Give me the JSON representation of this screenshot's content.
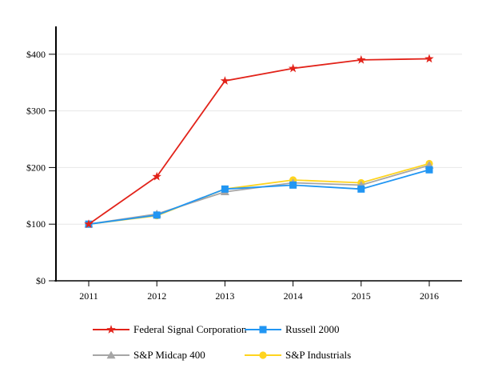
{
  "chart_data": {
    "type": "line",
    "title": "",
    "xlabel": "",
    "ylabel": "",
    "x": [
      "2011",
      "2012",
      "2013",
      "2014",
      "2015",
      "2016"
    ],
    "series": [
      {
        "name": "Federal Signal Corporation",
        "marker": "star",
        "color": "#e2231a",
        "values": [
          100,
          184,
          353,
          375,
          390,
          392
        ]
      },
      {
        "name": "Russell 2000",
        "marker": "square",
        "color": "#2196f3",
        "values": [
          100,
          116,
          162,
          169,
          162,
          196
        ]
      },
      {
        "name": "S&P Midcap 400",
        "marker": "triangle",
        "color": "#a6a6a6",
        "values": [
          100,
          118,
          157,
          173,
          169,
          204
        ]
      },
      {
        "name": "S&P Industrials",
        "marker": "circle",
        "color": "#ffd41f",
        "values": [
          100,
          115,
          162,
          178,
          173,
          207
        ]
      }
    ],
    "y_ticks": [
      {
        "value": 0,
        "label": "$0"
      },
      {
        "value": 100,
        "label": "$100"
      },
      {
        "value": 200,
        "label": "$200"
      },
      {
        "value": 300,
        "label": "$300"
      },
      {
        "value": 400,
        "label": "$400"
      }
    ],
    "ylim": [
      0,
      450
    ],
    "grid": "horizontal",
    "grid_color": "#e7e7e7",
    "axis_color": "#000000",
    "legend_position": "bottom",
    "draw_order": [
      3,
      2,
      1,
      0
    ]
  }
}
